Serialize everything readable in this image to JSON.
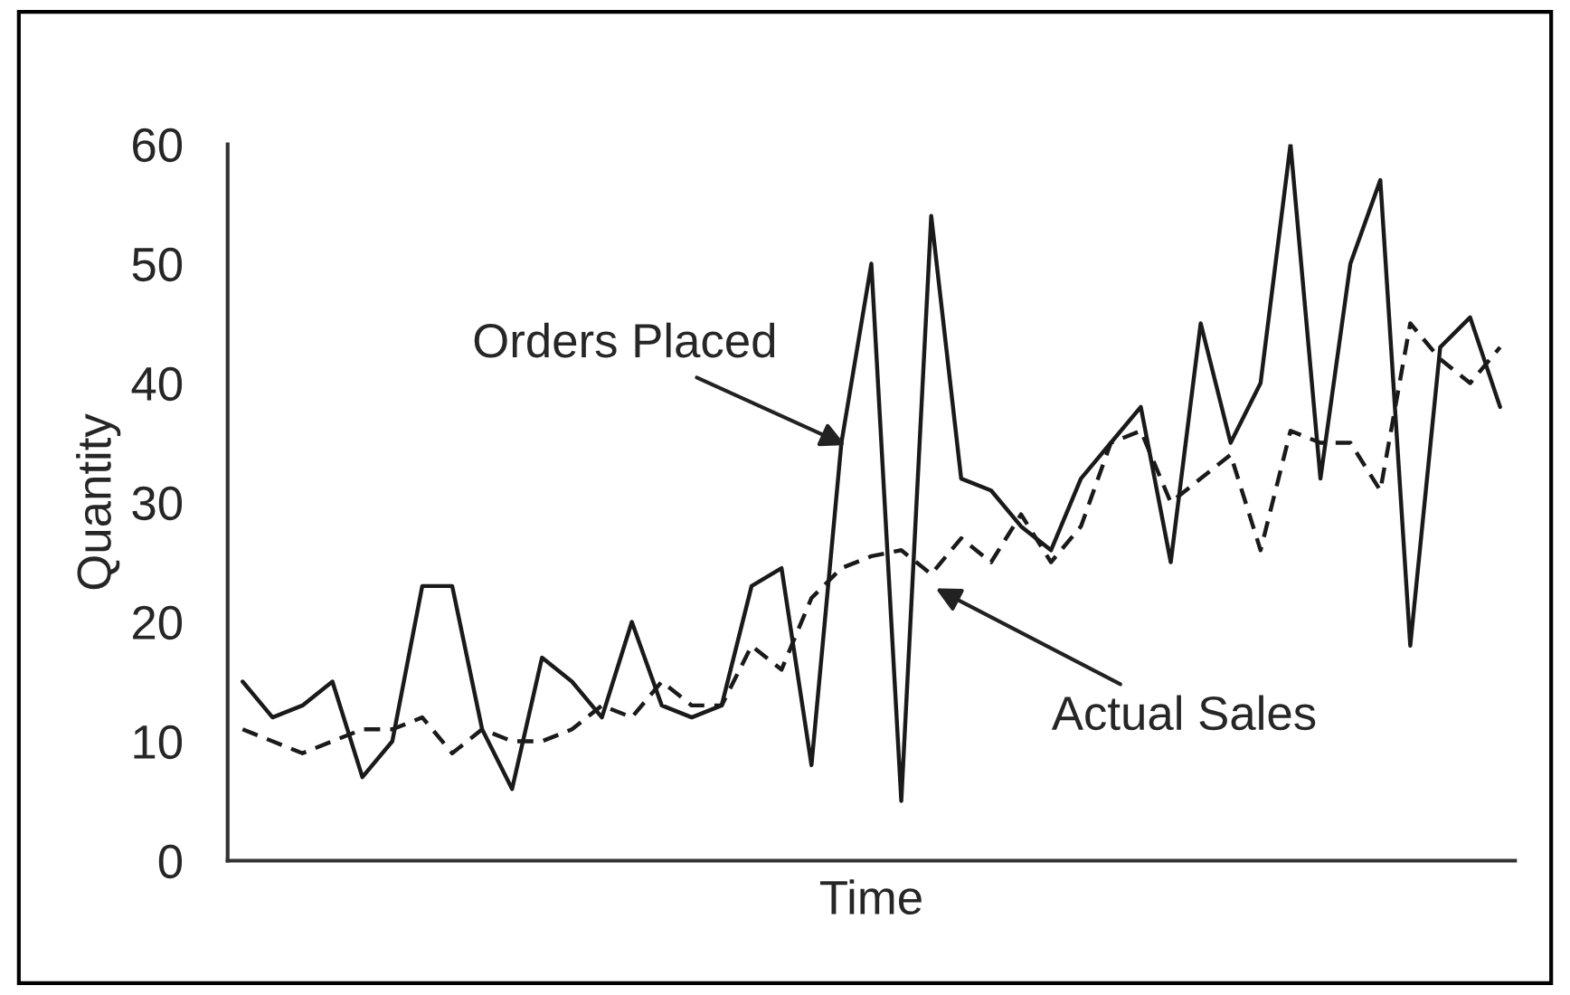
{
  "chart_data": {
    "type": "line",
    "xlabel": "Time",
    "ylabel": "Quantity",
    "categories": [
      null,
      null,
      null,
      null,
      null,
      null,
      null,
      null,
      null,
      null,
      null,
      null,
      null,
      null,
      null,
      null,
      null,
      null,
      null,
      null,
      null,
      null,
      null,
      null,
      null,
      null,
      null,
      null,
      null,
      null,
      null,
      null,
      null,
      null,
      null,
      null,
      null,
      null,
      null,
      null,
      null,
      null,
      null
    ],
    "series": [
      {
        "color": "#1a1a1a",
        "line_style": "solid",
        "values": [
          15,
          12,
          13,
          15,
          7,
          10,
          23,
          23,
          11,
          6,
          17,
          15,
          12,
          20,
          13,
          12,
          13,
          23,
          24.5,
          8,
          35,
          50,
          5,
          54,
          32,
          31,
          28,
          26,
          32,
          35,
          38,
          25,
          45,
          35,
          40,
          60,
          32,
          50,
          57,
          18,
          43,
          45.5,
          38
        ]
      },
      {
        "color": "#1a1a1a",
        "line_style": "dashed",
        "values": [
          11,
          10,
          9,
          10,
          11,
          11,
          12,
          9,
          11,
          10,
          10,
          11,
          13,
          12,
          15,
          13,
          13,
          18,
          16,
          22,
          24.5,
          25.5,
          26,
          24,
          27,
          25,
          29,
          25,
          28,
          35,
          36,
          30,
          32,
          34,
          26,
          36,
          35,
          35,
          31,
          45,
          42,
          40,
          43
        ]
      }
    ],
    "annotations": [
      "Orders Placed",
      "Actual Sales"
    ],
    "ylim": [
      0,
      60
    ],
    "yticks": [
      0,
      10,
      20,
      30,
      40,
      50,
      60
    ],
    "grid": false,
    "marker": "none"
  }
}
